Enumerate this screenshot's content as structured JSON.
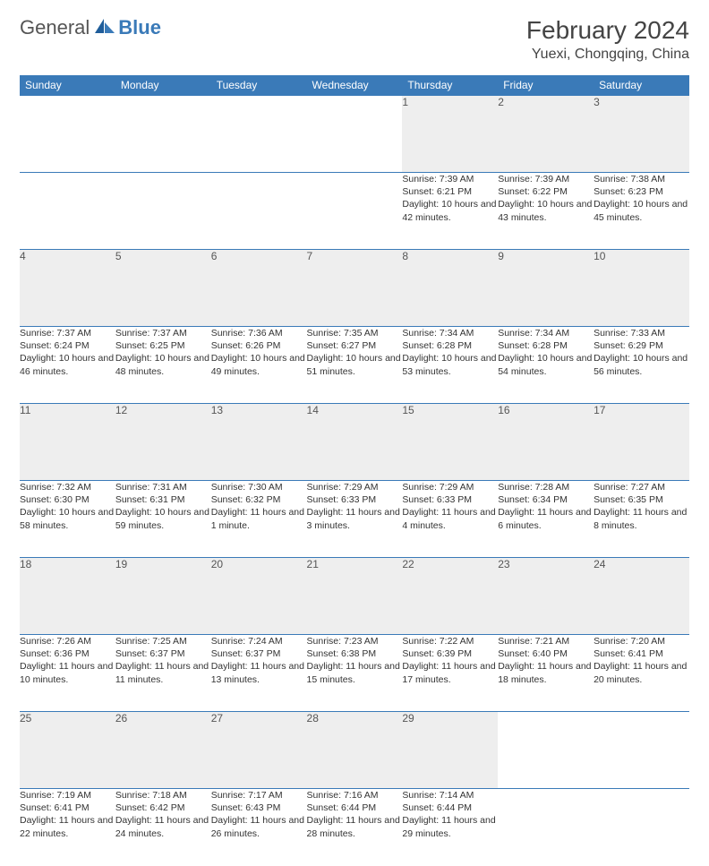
{
  "brand": {
    "general": "General",
    "blue": "Blue"
  },
  "header": {
    "title": "February 2024",
    "location": "Yuexi, Chongqing, China"
  },
  "colors": {
    "accent": "#3a7ab8",
    "header_bg": "#3a7ab8",
    "daynum_bg": "#eeeeee",
    "text": "#333333"
  },
  "dayNames": [
    "Sunday",
    "Monday",
    "Tuesday",
    "Wednesday",
    "Thursday",
    "Friday",
    "Saturday"
  ],
  "weeks": [
    [
      null,
      null,
      null,
      null,
      {
        "n": "1",
        "sr": "Sunrise: 7:39 AM",
        "ss": "Sunset: 6:21 PM",
        "dl": "Daylight: 10 hours and 42 minutes."
      },
      {
        "n": "2",
        "sr": "Sunrise: 7:39 AM",
        "ss": "Sunset: 6:22 PM",
        "dl": "Daylight: 10 hours and 43 minutes."
      },
      {
        "n": "3",
        "sr": "Sunrise: 7:38 AM",
        "ss": "Sunset: 6:23 PM",
        "dl": "Daylight: 10 hours and 45 minutes."
      }
    ],
    [
      {
        "n": "4",
        "sr": "Sunrise: 7:37 AM",
        "ss": "Sunset: 6:24 PM",
        "dl": "Daylight: 10 hours and 46 minutes."
      },
      {
        "n": "5",
        "sr": "Sunrise: 7:37 AM",
        "ss": "Sunset: 6:25 PM",
        "dl": "Daylight: 10 hours and 48 minutes."
      },
      {
        "n": "6",
        "sr": "Sunrise: 7:36 AM",
        "ss": "Sunset: 6:26 PM",
        "dl": "Daylight: 10 hours and 49 minutes."
      },
      {
        "n": "7",
        "sr": "Sunrise: 7:35 AM",
        "ss": "Sunset: 6:27 PM",
        "dl": "Daylight: 10 hours and 51 minutes."
      },
      {
        "n": "8",
        "sr": "Sunrise: 7:34 AM",
        "ss": "Sunset: 6:28 PM",
        "dl": "Daylight: 10 hours and 53 minutes."
      },
      {
        "n": "9",
        "sr": "Sunrise: 7:34 AM",
        "ss": "Sunset: 6:28 PM",
        "dl": "Daylight: 10 hours and 54 minutes."
      },
      {
        "n": "10",
        "sr": "Sunrise: 7:33 AM",
        "ss": "Sunset: 6:29 PM",
        "dl": "Daylight: 10 hours and 56 minutes."
      }
    ],
    [
      {
        "n": "11",
        "sr": "Sunrise: 7:32 AM",
        "ss": "Sunset: 6:30 PM",
        "dl": "Daylight: 10 hours and 58 minutes."
      },
      {
        "n": "12",
        "sr": "Sunrise: 7:31 AM",
        "ss": "Sunset: 6:31 PM",
        "dl": "Daylight: 10 hours and 59 minutes."
      },
      {
        "n": "13",
        "sr": "Sunrise: 7:30 AM",
        "ss": "Sunset: 6:32 PM",
        "dl": "Daylight: 11 hours and 1 minute."
      },
      {
        "n": "14",
        "sr": "Sunrise: 7:29 AM",
        "ss": "Sunset: 6:33 PM",
        "dl": "Daylight: 11 hours and 3 minutes."
      },
      {
        "n": "15",
        "sr": "Sunrise: 7:29 AM",
        "ss": "Sunset: 6:33 PM",
        "dl": "Daylight: 11 hours and 4 minutes."
      },
      {
        "n": "16",
        "sr": "Sunrise: 7:28 AM",
        "ss": "Sunset: 6:34 PM",
        "dl": "Daylight: 11 hours and 6 minutes."
      },
      {
        "n": "17",
        "sr": "Sunrise: 7:27 AM",
        "ss": "Sunset: 6:35 PM",
        "dl": "Daylight: 11 hours and 8 minutes."
      }
    ],
    [
      {
        "n": "18",
        "sr": "Sunrise: 7:26 AM",
        "ss": "Sunset: 6:36 PM",
        "dl": "Daylight: 11 hours and 10 minutes."
      },
      {
        "n": "19",
        "sr": "Sunrise: 7:25 AM",
        "ss": "Sunset: 6:37 PM",
        "dl": "Daylight: 11 hours and 11 minutes."
      },
      {
        "n": "20",
        "sr": "Sunrise: 7:24 AM",
        "ss": "Sunset: 6:37 PM",
        "dl": "Daylight: 11 hours and 13 minutes."
      },
      {
        "n": "21",
        "sr": "Sunrise: 7:23 AM",
        "ss": "Sunset: 6:38 PM",
        "dl": "Daylight: 11 hours and 15 minutes."
      },
      {
        "n": "22",
        "sr": "Sunrise: 7:22 AM",
        "ss": "Sunset: 6:39 PM",
        "dl": "Daylight: 11 hours and 17 minutes."
      },
      {
        "n": "23",
        "sr": "Sunrise: 7:21 AM",
        "ss": "Sunset: 6:40 PM",
        "dl": "Daylight: 11 hours and 18 minutes."
      },
      {
        "n": "24",
        "sr": "Sunrise: 7:20 AM",
        "ss": "Sunset: 6:41 PM",
        "dl": "Daylight: 11 hours and 20 minutes."
      }
    ],
    [
      {
        "n": "25",
        "sr": "Sunrise: 7:19 AM",
        "ss": "Sunset: 6:41 PM",
        "dl": "Daylight: 11 hours and 22 minutes."
      },
      {
        "n": "26",
        "sr": "Sunrise: 7:18 AM",
        "ss": "Sunset: 6:42 PM",
        "dl": "Daylight: 11 hours and 24 minutes."
      },
      {
        "n": "27",
        "sr": "Sunrise: 7:17 AM",
        "ss": "Sunset: 6:43 PM",
        "dl": "Daylight: 11 hours and 26 minutes."
      },
      {
        "n": "28",
        "sr": "Sunrise: 7:16 AM",
        "ss": "Sunset: 6:44 PM",
        "dl": "Daylight: 11 hours and 28 minutes."
      },
      {
        "n": "29",
        "sr": "Sunrise: 7:14 AM",
        "ss": "Sunset: 6:44 PM",
        "dl": "Daylight: 11 hours and 29 minutes."
      },
      null,
      null
    ]
  ]
}
